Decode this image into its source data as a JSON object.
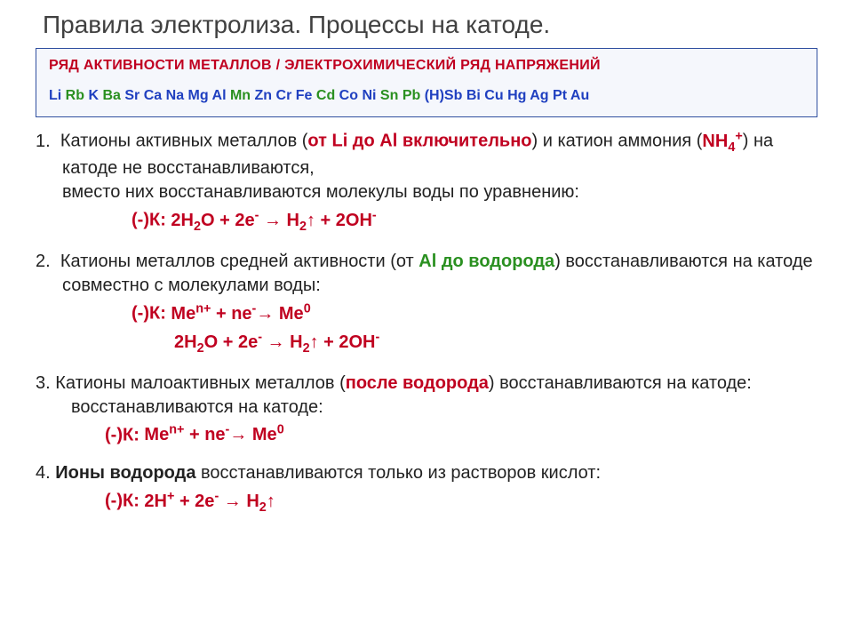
{
  "title": "Правила электролиза. Процессы на катоде.",
  "activity": {
    "heading": "РЯД АКТИВНОСТИ МЕТАЛЛОВ / ЭЛЕКТРОХИМИЧЕСКИЙ РЯД НАПРЯЖЕНИЙ",
    "series": [
      {
        "t": "Li",
        "c": "blue"
      },
      {
        "t": "Rb",
        "c": "green"
      },
      {
        "t": "K",
        "c": "blue"
      },
      {
        "t": "Ba",
        "c": "green"
      },
      {
        "t": "Sr",
        "c": "blue"
      },
      {
        "t": "Ca",
        "c": "blue"
      },
      {
        "t": "Na",
        "c": "blue"
      },
      {
        "t": "Mg",
        "c": "blue"
      },
      {
        "t": "Al",
        "c": "blue"
      },
      {
        "t": "Mn",
        "c": "green"
      },
      {
        "t": "Zn",
        "c": "blue"
      },
      {
        "t": "Cr",
        "c": "blue"
      },
      {
        "t": "Fe",
        "c": "blue"
      },
      {
        "t": "Cd",
        "c": "green"
      },
      {
        "t": "Co",
        "c": "blue"
      },
      {
        "t": "Ni",
        "c": "blue"
      },
      {
        "t": "Sn",
        "c": "green"
      },
      {
        "t": "Pb",
        "c": "green"
      },
      {
        "t": "(H)Sb",
        "c": "blue"
      },
      {
        "t": "Bi",
        "c": "blue"
      },
      {
        "t": "Cu",
        "c": "blue"
      },
      {
        "t": "Hg",
        "c": "blue"
      },
      {
        "t": "Ag",
        "c": "blue"
      },
      {
        "t": "Pt",
        "c": "blue"
      },
      {
        "t": "Au",
        "c": "blue"
      }
    ]
  },
  "rules": {
    "r1_num": "1.",
    "r1_a": "Катионы активных металлов (",
    "r1_emph1": "от Li до Al включительно",
    "r1_b": ") и катион аммония (",
    "r1_emph2_pre": "NH",
    "r1_emph2_sub": "4",
    "r1_emph2_sup": "+",
    "r1_c": ") на катоде не восстанавливаются,",
    "r1_d": "вместо них восстанавливаются молекулы воды по уравнению:",
    "r1_eq_lead": "(-)К: ",
    "r1_eq": "2H₂O + 2e⁻ → H₂↑ + 2OH⁻",
    "r2_num": "2.",
    "r2_a": "Катионы металлов средней активности (от ",
    "r2_emph1": "Al до водорода",
    "r2_b": ") восстанавливаются на катоде совместно с молекулами воды:",
    "r2_eq_lead": "(-)К: ",
    "r2_eq1": "Meⁿ⁺ + ne⁻→ Me⁰",
    "r2_eq2": "2H₂O + 2e⁻ → H₂↑ + 2OH⁻",
    "r3_num": "3.",
    "r3_a": " Катионы малоактивных металлов (",
    "r3_emph1": "после водорода",
    "r3_b": ") восстанавливаются на катоде:",
    "r3_eq_lead": "(-)К: ",
    "r3_eq": "Meⁿ⁺ + ne⁻→ Me⁰",
    "r4_num": "4.",
    "r4_emph1": " Ионы водорода",
    "r4_a": " восстанавливаются только из растворов кислот:",
    "r4_eq_lead": "(-)К: ",
    "r4_eq": "2H⁺ + 2e⁻ → H₂↑"
  },
  "colors": {
    "red": "#c00020",
    "green": "#2a9020",
    "blue": "#2040c0",
    "box_border": "#3050a0",
    "box_bg": "#f5f7fc"
  }
}
